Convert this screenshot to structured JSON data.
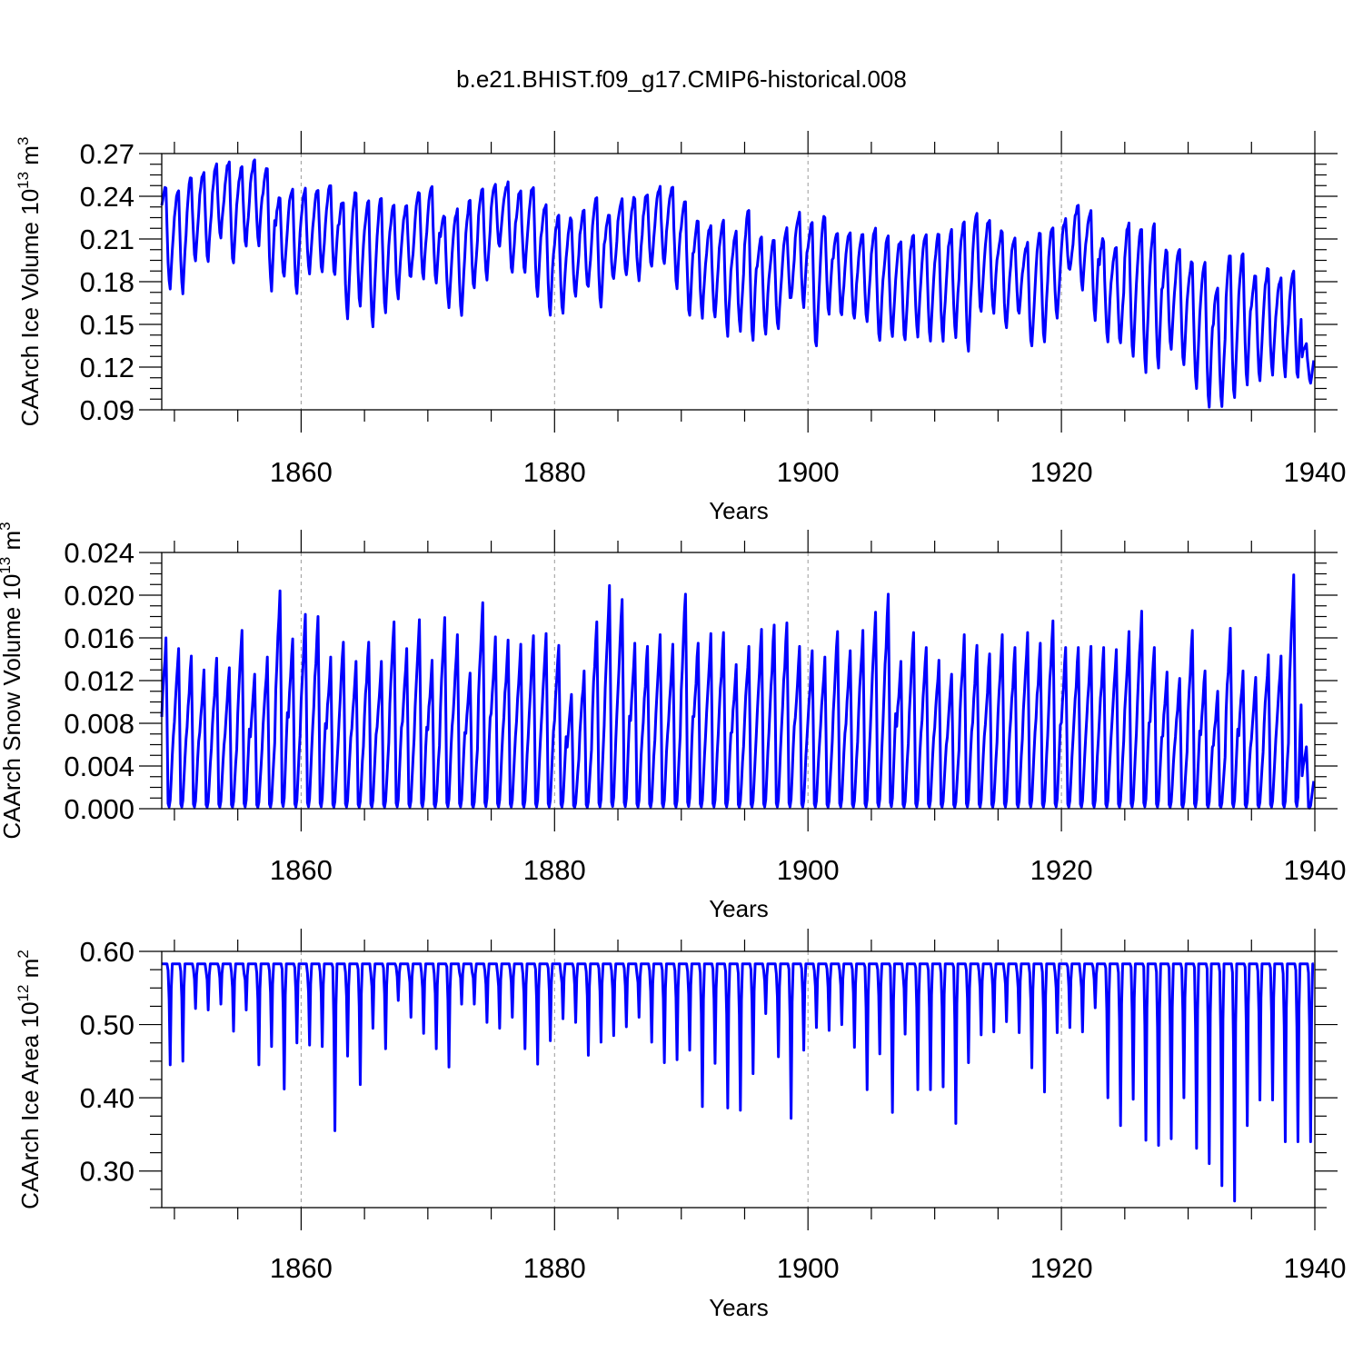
{
  "title": "b.e21.BHIST.f09_g17.CMIP6-historical.008",
  "colors": {
    "series": "#0000ff",
    "axis": "#000000",
    "grid": "#9a9a9a"
  },
  "chart_data": [
    {
      "type": "line",
      "xlabel": "Years",
      "ylabel": {
        "prefix": "CAArch Ice Volume 10",
        "exp": "13",
        "unit": " m",
        "unit_exp": "3"
      },
      "xlim": [
        1849,
        1940
      ],
      "ylim": [
        0.09,
        0.27
      ],
      "x_ticks": [
        1860,
        1880,
        1900,
        1920,
        1940
      ],
      "y_ticks": [
        "0.09",
        "0.12",
        "0.15",
        "0.18",
        "0.21",
        "0.24",
        "0.27"
      ],
      "x_grid": true,
      "series": [
        {
          "x_start": 1849,
          "x_step": 1,
          "annual_max": [
            0.245,
            0.245,
            0.253,
            0.257,
            0.262,
            0.265,
            0.261,
            0.265,
            0.259,
            0.239,
            0.246,
            0.245,
            0.244,
            0.249,
            0.237,
            0.243,
            0.237,
            0.238,
            0.235,
            0.233,
            0.242,
            0.246,
            0.227,
            0.23,
            0.236,
            0.245,
            0.25,
            0.249,
            0.244,
            0.248,
            0.235,
            0.226,
            0.225,
            0.229,
            0.239,
            0.228,
            0.237,
            0.239,
            0.242,
            0.246,
            0.246,
            0.236,
            0.222,
            0.219,
            0.222,
            0.214,
            0.229,
            0.211,
            0.209,
            0.216,
            0.227,
            0.22,
            0.226,
            0.215,
            0.215,
            0.213,
            0.217,
            0.211,
            0.21,
            0.213,
            0.214,
            0.213,
            0.216,
            0.222,
            0.227,
            0.225,
            0.216,
            0.211,
            0.207,
            0.215,
            0.219,
            0.224,
            0.233,
            0.229,
            0.21,
            0.203,
            0.221,
            0.217,
            0.219,
            0.202,
            0.203,
            0.195,
            0.193,
            0.176,
            0.199,
            0.199,
            0.184,
            0.189,
            0.182,
            0.188,
            0.135
          ],
          "annual_min": [
            0.174,
            0.173,
            0.196,
            0.194,
            0.211,
            0.192,
            0.205,
            0.206,
            0.175,
            0.183,
            0.171,
            0.186,
            0.187,
            0.184,
            0.155,
            0.162,
            0.148,
            0.16,
            0.167,
            0.182,
            0.183,
            0.178,
            0.163,
            0.157,
            0.175,
            0.182,
            0.203,
            0.185,
            0.186,
            0.169,
            0.158,
            0.159,
            0.17,
            0.175,
            0.162,
            0.181,
            0.183,
            0.182,
            0.19,
            0.193,
            0.177,
            0.156,
            0.156,
            0.155,
            0.143,
            0.146,
            0.14,
            0.144,
            0.147,
            0.167,
            0.163,
            0.133,
            0.158,
            0.156,
            0.153,
            0.153,
            0.137,
            0.14,
            0.139,
            0.143,
            0.139,
            0.14,
            0.142,
            0.133,
            0.159,
            0.158,
            0.146,
            0.156,
            0.133,
            0.139,
            0.153,
            0.187,
            0.176,
            0.154,
            0.138,
            0.137,
            0.126,
            0.118,
            0.119,
            0.132,
            0.121,
            0.105,
            0.092,
            0.093,
            0.097,
            0.109,
            0.112,
            0.116,
            0.114,
            0.111,
            0.11
          ]
        }
      ]
    },
    {
      "type": "line",
      "xlabel": "Years",
      "ylabel": {
        "prefix": "CAArch Snow Volume 10",
        "exp": "13",
        "unit": " m",
        "unit_exp": "3"
      },
      "xlim": [
        1849,
        1940
      ],
      "ylim": [
        0.0,
        0.024
      ],
      "x_ticks": [
        1860,
        1880,
        1900,
        1920,
        1940
      ],
      "y_ticks": [
        "0.000",
        "0.004",
        "0.008",
        "0.012",
        "0.016",
        "0.020",
        "0.024"
      ],
      "x_grid": true,
      "series": [
        {
          "x_start": 1849,
          "x_step": 1,
          "annual_max": [
            0.016,
            0.015,
            0.0143,
            0.013,
            0.0141,
            0.0132,
            0.0167,
            0.0126,
            0.0142,
            0.0204,
            0.0159,
            0.0182,
            0.018,
            0.0142,
            0.0156,
            0.0138,
            0.0156,
            0.0138,
            0.0175,
            0.015,
            0.0177,
            0.0139,
            0.0179,
            0.0163,
            0.0127,
            0.0193,
            0.0161,
            0.0158,
            0.0154,
            0.0162,
            0.0164,
            0.0153,
            0.0107,
            0.0129,
            0.0175,
            0.0209,
            0.0196,
            0.0155,
            0.0152,
            0.0163,
            0.0154,
            0.0201,
            0.0155,
            0.0164,
            0.0165,
            0.0135,
            0.0152,
            0.0168,
            0.0172,
            0.0174,
            0.0152,
            0.0148,
            0.0142,
            0.0166,
            0.0148,
            0.0167,
            0.0184,
            0.0201,
            0.0138,
            0.0165,
            0.0151,
            0.0139,
            0.0126,
            0.0163,
            0.0153,
            0.0145,
            0.0163,
            0.0151,
            0.0165,
            0.0155,
            0.0176,
            0.0151,
            0.0151,
            0.0152,
            0.0151,
            0.0149,
            0.0166,
            0.0185,
            0.0151,
            0.0128,
            0.0122,
            0.0167,
            0.0129,
            0.011,
            0.0169,
            0.0129,
            0.0123,
            0.0144,
            0.0143,
            0.0219,
            0.0058
          ]
        }
      ]
    },
    {
      "type": "line",
      "xlabel": "Years",
      "ylabel": {
        "prefix": "CAArch Ice Area 10",
        "exp": "12",
        "unit": " m",
        "unit_exp": "2"
      },
      "xlim": [
        1849,
        1940
      ],
      "ylim": [
        0.25,
        0.6
      ],
      "x_ticks": [
        1860,
        1880,
        1900,
        1920,
        1940
      ],
      "y_ticks": [
        "0.30",
        "0.40",
        "0.50",
        "0.60"
      ],
      "x_grid": true,
      "series": [
        {
          "x_start": 1849,
          "x_step": 1,
          "annual_max_plateau": 0.583,
          "annual_min": [
            0.445,
            0.45,
            0.522,
            0.52,
            0.528,
            0.491,
            0.52,
            0.445,
            0.47,
            0.412,
            0.475,
            0.472,
            0.47,
            0.355,
            0.457,
            0.418,
            0.495,
            0.467,
            0.533,
            0.51,
            0.488,
            0.467,
            0.442,
            0.528,
            0.528,
            0.503,
            0.495,
            0.51,
            0.467,
            0.446,
            0.478,
            0.508,
            0.503,
            0.458,
            0.476,
            0.485,
            0.497,
            0.51,
            0.476,
            0.448,
            0.452,
            0.465,
            0.388,
            0.447,
            0.386,
            0.383,
            0.433,
            0.515,
            0.456,
            0.372,
            0.465,
            0.496,
            0.492,
            0.5,
            0.469,
            0.411,
            0.46,
            0.38,
            0.487,
            0.411,
            0.411,
            0.415,
            0.365,
            0.448,
            0.486,
            0.49,
            0.504,
            0.489,
            0.441,
            0.408,
            0.489,
            0.496,
            0.49,
            0.523,
            0.4,
            0.362,
            0.398,
            0.342,
            0.335,
            0.344,
            0.4,
            0.331,
            0.31,
            0.28,
            0.259,
            0.362,
            0.397,
            0.397,
            0.34,
            0.34,
            0.34
          ]
        }
      ]
    }
  ]
}
